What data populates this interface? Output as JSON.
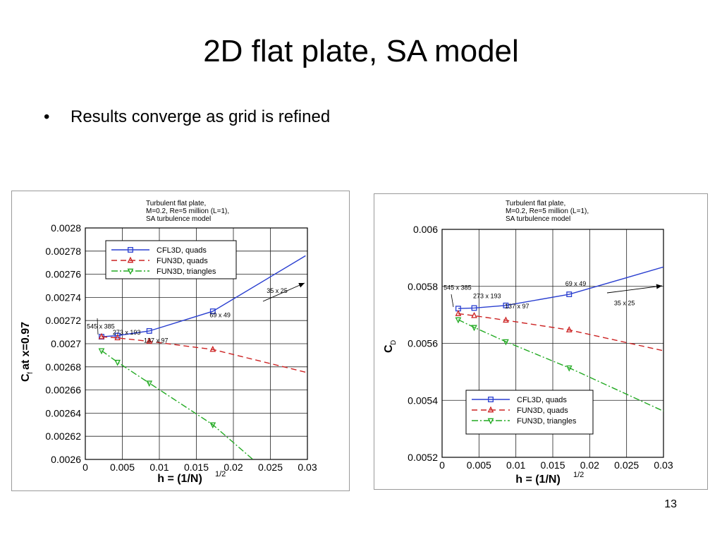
{
  "slide": {
    "title": "2D flat plate, SA model",
    "bullet": "Results converge as grid is refined",
    "bullet_marker": "•",
    "page_number": "13"
  },
  "chart_data": [
    {
      "type": "line",
      "title": "Turbulent flat plate,",
      "subtitle_lines": [
        "M=0.2, Re=5 million (L=1),",
        "SA turbulence model"
      ],
      "xlabel": "h = (1/N)",
      "xlabel_sup": "1/2",
      "ylabel": "C",
      "ylabel_sub": "f",
      "ylabel_rest": " at x=0.97",
      "xlim": [
        0,
        0.03
      ],
      "ylim": [
        0.0026,
        0.0028
      ],
      "xticks": [
        "0",
        "0.005",
        "0.01",
        "0.015",
        "0.02",
        "0.025",
        "0.03"
      ],
      "yticks": [
        "0.0026",
        "0.00262",
        "0.00264",
        "0.00266",
        "0.00268",
        "0.0027",
        "0.00272",
        "0.00274",
        "0.00276",
        "0.00278",
        "0.0028"
      ],
      "grid": true,
      "legend_position": "top-left",
      "series": [
        {
          "name": "CFL3D, quads",
          "color": "#2a3fd0",
          "dash": "",
          "marker": "square",
          "x": [
            0.00219,
            0.00435,
            0.00864,
            0.01722,
            0.02975
          ],
          "y": [
            0.002706,
            0.002707,
            0.002711,
            0.002728,
            0.002776
          ]
        },
        {
          "name": "FUN3D, quads",
          "color": "#cc2222",
          "dash": "8,5",
          "marker": "triangle-up",
          "x": [
            0.00219,
            0.00435,
            0.00864,
            0.01722,
            0.03
          ],
          "y": [
            0.002706,
            0.002705,
            0.002702,
            0.002695,
            0.002675
          ]
        },
        {
          "name": "FUN3D, triangles",
          "color": "#22aa22",
          "dash": "9,3,2,3",
          "marker": "triangle-down",
          "x": [
            0.00219,
            0.00435,
            0.00864,
            0.01722,
            0.02263
          ],
          "y": [
            0.002694,
            0.002684,
            0.002666,
            0.00263,
            0.0026
          ]
        }
      ],
      "annotations": [
        {
          "text": "545 x 385",
          "x": 0.0002,
          "y": 0.002713
        },
        {
          "text": "273 x 193",
          "x": 0.0037,
          "y": 0.002708
        },
        {
          "text": "137 x 97",
          "x": 0.0079,
          "y": 0.002701
        },
        {
          "text": "69 x 49",
          "x": 0.0168,
          "y": 0.002723
        },
        {
          "text": "35 x 25",
          "x": 0.0245,
          "y": 0.002744
        }
      ]
    },
    {
      "type": "line",
      "title": "Turbulent flat plate,",
      "subtitle_lines": [
        "M=0.2, Re=5 million (L=1),",
        "SA turbulence model"
      ],
      "xlabel": "h = (1/N)",
      "xlabel_sup": "1/2",
      "ylabel": "C",
      "ylabel_sub": "D",
      "ylabel_rest": "",
      "xlim": [
        0,
        0.03
      ],
      "ylim": [
        0.0052,
        0.006
      ],
      "xticks": [
        "0",
        "0.005",
        "0.01",
        "0.015",
        "0.02",
        "0.025",
        "0.03"
      ],
      "yticks": [
        "0.0052",
        "0.0054",
        "0.0056",
        "0.0058",
        "0.006"
      ],
      "grid": true,
      "legend_position": "bottom-left",
      "series": [
        {
          "name": "CFL3D, quads",
          "color": "#2a3fd0",
          "dash": "",
          "marker": "square",
          "x": [
            0.00219,
            0.00435,
            0.00864,
            0.01722,
            0.03
          ],
          "y": [
            0.005722,
            0.005724,
            0.005733,
            0.005772,
            0.005868
          ]
        },
        {
          "name": "FUN3D, quads",
          "color": "#cc2222",
          "dash": "8,5",
          "marker": "triangle-up",
          "x": [
            0.00219,
            0.00435,
            0.00864,
            0.01722,
            0.03
          ],
          "y": [
            0.005704,
            0.005697,
            0.005681,
            0.005647,
            0.005574
          ]
        },
        {
          "name": "FUN3D, triangles",
          "color": "#22aa22",
          "dash": "9,3,2,3",
          "marker": "triangle-down",
          "x": [
            0.00219,
            0.00435,
            0.00864,
            0.01722,
            0.03
          ],
          "y": [
            0.005683,
            0.005656,
            0.005606,
            0.005514,
            0.005362
          ]
        }
      ],
      "annotations": [
        {
          "text": "545 x 385",
          "x": 0.0002,
          "y": 0.005788
        },
        {
          "text": "273 x 193",
          "x": 0.0042,
          "y": 0.005758
        },
        {
          "text": "137 x 97",
          "x": 0.0085,
          "y": 0.005722
        },
        {
          "text": "69 x 49",
          "x": 0.0167,
          "y": 0.005802
        },
        {
          "text": "35 x 25",
          "x": 0.0233,
          "y": 0.005734
        }
      ]
    }
  ]
}
